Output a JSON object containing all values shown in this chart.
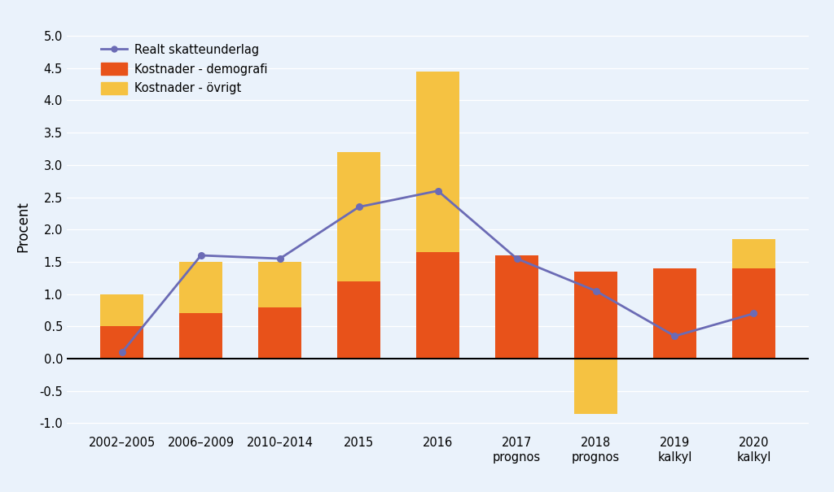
{
  "categories": [
    "2002–2005",
    "2006–2009",
    "2010–2014",
    "2015",
    "2016",
    "2017\nprognos",
    "2018\nprognos",
    "2019\nkalkyl",
    "2020\nkalkyl"
  ],
  "demografi": [
    0.5,
    0.7,
    0.8,
    1.2,
    1.65,
    1.6,
    1.35,
    1.4,
    1.4
  ],
  "ovrigt": [
    0.5,
    0.8,
    0.7,
    2.0,
    2.8,
    0.0,
    -0.85,
    0.0,
    0.45
  ],
  "realt": [
    0.1,
    1.6,
    1.55,
    2.35,
    2.6,
    1.55,
    1.05,
    0.35,
    0.7
  ],
  "bar_color_demografi": "#e8521a",
  "bar_color_ovrigt": "#f5c242",
  "line_color": "#6b6bb5",
  "background_color": "#eaf2fb",
  "ylabel": "Procent",
  "ylim": [
    -1.15,
    5.25
  ],
  "yticks": [
    -1.0,
    -0.5,
    0.0,
    0.5,
    1.0,
    1.5,
    2.0,
    2.5,
    3.0,
    3.5,
    4.0,
    4.5,
    5.0
  ],
  "legend_line_label": "Realt skatteunderlag",
  "legend_demografi_label": "Kostnader - demografi",
  "legend_ovrigt_label": "Kostnader - övrigt"
}
